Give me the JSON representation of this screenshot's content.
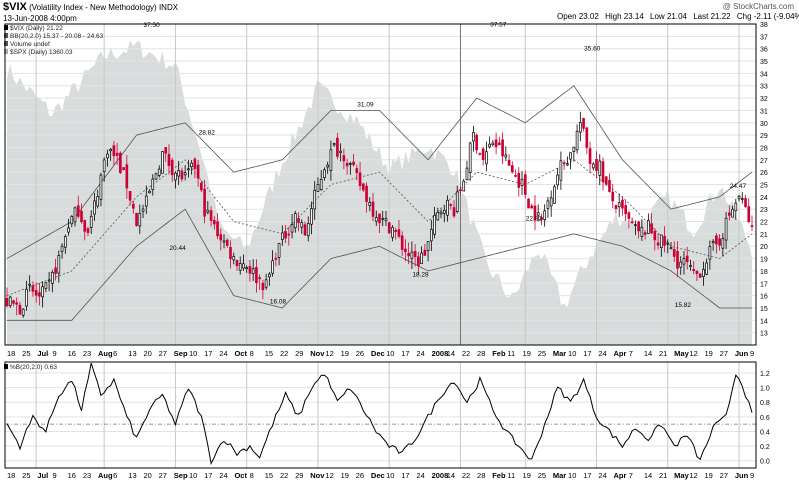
{
  "header": {
    "symbol": "$VIX",
    "name": "(Volatility Index - New Methodology)",
    "exchange": "INDX",
    "date": "13-Jun-2008 4:00pm",
    "copyright": "@ StockCharts.com",
    "quote": [
      {
        "label": "Open",
        "value": "23.02"
      },
      {
        "label": "High",
        "value": "23.14"
      },
      {
        "label": "Low",
        "value": "21.04"
      },
      {
        "label": "Last",
        "value": "21.22"
      },
      {
        "label": "Chg",
        "value": "-2.11 (-9.04%)"
      }
    ],
    "down_marker": "▼"
  },
  "legend": [
    {
      "text": "$VIX (Daily) 21.22",
      "swatch": "#000000"
    },
    {
      "text": "BB(20,2.0) 15.37 - 20.08 - 24.63",
      "swatch": "#555555"
    },
    {
      "text": "Volume undef",
      "swatch": "#555555"
    },
    {
      "text": "$SPX (Daily) 1360.03",
      "swatch": "#aaaaaa"
    }
  ],
  "colors": {
    "up": "#000000",
    "down": "#cc0033",
    "spx_fill": "#d9dcdc",
    "band": "#555555",
    "grid": "#e3e3e3",
    "osc": "#000000"
  },
  "chart_data": [
    {
      "type": "candlestick",
      "title": "$VIX (Daily) 21.22",
      "ylim": [
        12,
        38
      ],
      "y_ticks": [
        13,
        14,
        15,
        16,
        17,
        18,
        19,
        20,
        21,
        22,
        23,
        24,
        25,
        26,
        27,
        28,
        29,
        30,
        31,
        32,
        33,
        34,
        35,
        36,
        37,
        38
      ],
      "x_tick_labels": [
        "18",
        "25",
        "Jul",
        "9",
        "16",
        "23",
        "Aug",
        "6",
        "13",
        "20",
        "27",
        "Sep",
        "10",
        "17",
        "24",
        "Oct",
        "8",
        "15",
        "22",
        "29",
        "Nov",
        "12",
        "19",
        "26",
        "Dec",
        "10",
        "17",
        "24",
        "2008",
        "14",
        "22",
        "28",
        "Feb",
        "11",
        "19",
        "25",
        "Mar",
        "10",
        "17",
        "24",
        "Apr",
        "7",
        "14",
        "21",
        "May",
        "12",
        "19",
        "27",
        "Jun",
        "9"
      ],
      "annotations": [
        {
          "text": "37.50",
          "value": 37.5
        },
        {
          "text": "28.82",
          "value": 28.82
        },
        {
          "text": "20.44",
          "value": 20.44
        },
        {
          "text": "31.09",
          "value": 31.09
        },
        {
          "text": "16.08",
          "value": 16.08
        },
        {
          "text": "18.28",
          "value": 18.28
        },
        {
          "text": "37.57",
          "value": 37.57
        },
        {
          "text": "22.82",
          "value": 22.82
        },
        {
          "text": "35.60",
          "value": 35.6
        },
        {
          "text": "15.82",
          "value": 15.82
        },
        {
          "text": "24.47",
          "value": 24.47
        }
      ],
      "close_waypoints": [
        [
          0,
          15.5
        ],
        [
          4,
          15.0
        ],
        [
          7,
          16.5
        ],
        [
          10,
          15.8
        ],
        [
          13,
          16.8
        ],
        [
          16,
          19.0
        ],
        [
          19,
          21.8
        ],
        [
          22,
          23.0
        ],
        [
          25,
          21.0
        ],
        [
          28,
          24.5
        ],
        [
          31,
          28.0
        ],
        [
          34,
          27.0
        ],
        [
          37,
          25.0
        ],
        [
          40,
          22.0
        ],
        [
          43,
          23.5
        ],
        [
          46,
          26.0
        ],
        [
          48,
          27.5
        ],
        [
          52,
          26.0
        ],
        [
          55,
          25.5
        ],
        [
          58,
          26.5
        ],
        [
          61,
          23.0
        ],
        [
          64,
          21.5
        ],
        [
          66,
          20.8
        ],
        [
          70,
          19.0
        ],
        [
          74,
          18.5
        ],
        [
          77,
          17.5
        ],
        [
          80,
          16.8
        ],
        [
          83,
          19.5
        ],
        [
          86,
          21.0
        ],
        [
          89,
          22.5
        ],
        [
          92,
          21.0
        ],
        [
          95,
          24.0
        ],
        [
          98,
          26.5
        ],
        [
          101,
          28.0
        ],
        [
          104,
          27.5
        ],
        [
          107,
          26.0
        ],
        [
          110,
          24.5
        ],
        [
          113,
          23.0
        ],
        [
          116,
          22.0
        ],
        [
          119,
          21.5
        ],
        [
          122,
          20.0
        ],
        [
          125,
          19.0
        ],
        [
          127,
          18.8
        ],
        [
          129,
          19.5
        ],
        [
          132,
          22.0
        ],
        [
          135,
          23.5
        ],
        [
          138,
          23.0
        ],
        [
          141,
          25.5
        ],
        [
          144,
          29.0
        ],
        [
          147,
          27.0
        ],
        [
          150,
          28.5
        ],
        [
          153,
          27.5
        ],
        [
          156,
          26.0
        ],
        [
          159,
          25.0
        ],
        [
          162,
          23.0
        ],
        [
          165,
          22.0
        ],
        [
          168,
          24.5
        ],
        [
          171,
          26.5
        ],
        [
          174,
          27.5
        ],
        [
          177,
          30.0
        ],
        [
          180,
          27.0
        ],
        [
          183,
          26.5
        ],
        [
          186,
          24.0
        ],
        [
          189,
          23.0
        ],
        [
          192,
          22.0
        ],
        [
          195,
          21.0
        ],
        [
          198,
          21.5
        ],
        [
          201,
          20.5
        ],
        [
          204,
          20.0
        ],
        [
          207,
          18.8
        ],
        [
          210,
          18.5
        ],
        [
          212,
          17.5
        ],
        [
          214,
          18.0
        ],
        [
          217,
          19.5
        ],
        [
          220,
          20.5
        ],
        [
          223,
          22.5
        ],
        [
          226,
          24.0
        ],
        [
          228,
          23.0
        ],
        [
          230,
          21.22
        ]
      ],
      "bollinger": {
        "upper": [
          [
            0,
            19
          ],
          [
            20,
            22
          ],
          [
            40,
            29
          ],
          [
            55,
            30
          ],
          [
            70,
            26
          ],
          [
            85,
            27
          ],
          [
            100,
            31
          ],
          [
            115,
            31
          ],
          [
            130,
            27
          ],
          [
            145,
            32
          ],
          [
            160,
            30
          ],
          [
            175,
            33
          ],
          [
            190,
            27
          ],
          [
            205,
            23
          ],
          [
            220,
            24
          ],
          [
            230,
            26
          ]
        ],
        "middle": [
          [
            0,
            16
          ],
          [
            20,
            18
          ],
          [
            40,
            24
          ],
          [
            55,
            27
          ],
          [
            70,
            22
          ],
          [
            85,
            21
          ],
          [
            100,
            25
          ],
          [
            115,
            26
          ],
          [
            130,
            22
          ],
          [
            145,
            26
          ],
          [
            160,
            25
          ],
          [
            175,
            27
          ],
          [
            190,
            24
          ],
          [
            205,
            20
          ],
          [
            220,
            19
          ],
          [
            230,
            21
          ]
        ],
        "lower": [
          [
            0,
            14
          ],
          [
            20,
            14
          ],
          [
            40,
            20
          ],
          [
            55,
            23
          ],
          [
            70,
            16
          ],
          [
            85,
            15
          ],
          [
            100,
            19
          ],
          [
            115,
            20
          ],
          [
            130,
            18
          ],
          [
            145,
            19
          ],
          [
            160,
            20
          ],
          [
            175,
            21
          ],
          [
            190,
            20
          ],
          [
            205,
            18
          ],
          [
            220,
            15
          ],
          [
            230,
            15
          ]
        ]
      }
    },
    {
      "type": "line",
      "title": "%B(20,2.0) 0.63",
      "ylim": [
        -0.1,
        1.35
      ],
      "y_ticks": [
        "0.0",
        "0.2",
        "0.4",
        "0.6",
        "0.8",
        "1.0",
        "1.2"
      ],
      "reference_line": 0.5,
      "waypoints": [
        [
          0,
          0.5
        ],
        [
          4,
          0.2
        ],
        [
          8,
          0.6
        ],
        [
          12,
          0.4
        ],
        [
          16,
          0.9
        ],
        [
          20,
          1.1
        ],
        [
          23,
          0.7
        ],
        [
          26,
          1.3
        ],
        [
          29,
          0.9
        ],
        [
          33,
          1.1
        ],
        [
          37,
          0.6
        ],
        [
          40,
          0.3
        ],
        [
          44,
          0.7
        ],
        [
          48,
          0.9
        ],
        [
          52,
          0.5
        ],
        [
          56,
          1.0
        ],
        [
          60,
          0.6
        ],
        [
          63,
          0.0
        ],
        [
          67,
          0.3
        ],
        [
          71,
          0.1
        ],
        [
          75,
          0.2
        ],
        [
          78,
          0.05
        ],
        [
          82,
          0.5
        ],
        [
          86,
          0.9
        ],
        [
          90,
          0.6
        ],
        [
          94,
          1.0
        ],
        [
          98,
          1.2
        ],
        [
          102,
          0.8
        ],
        [
          106,
          1.0
        ],
        [
          110,
          0.7
        ],
        [
          114,
          0.4
        ],
        [
          118,
          0.2
        ],
        [
          122,
          0.1
        ],
        [
          126,
          0.3
        ],
        [
          130,
          0.6
        ],
        [
          134,
          0.9
        ],
        [
          138,
          1.1
        ],
        [
          142,
          0.8
        ],
        [
          146,
          1.1
        ],
        [
          150,
          0.7
        ],
        [
          154,
          0.4
        ],
        [
          158,
          0.2
        ],
        [
          162,
          0.0
        ],
        [
          166,
          0.5
        ],
        [
          170,
          1.0
        ],
        [
          174,
          0.8
        ],
        [
          178,
          1.1
        ],
        [
          182,
          0.6
        ],
        [
          186,
          0.4
        ],
        [
          190,
          0.2
        ],
        [
          194,
          0.45
        ],
        [
          198,
          0.3
        ],
        [
          202,
          0.5
        ],
        [
          206,
          0.2
        ],
        [
          210,
          0.35
        ],
        [
          214,
          0.0
        ],
        [
          218,
          0.45
        ],
        [
          222,
          0.6
        ],
        [
          225,
          1.2
        ],
        [
          227,
          1.05
        ],
        [
          230,
          0.63
        ]
      ]
    }
  ]
}
